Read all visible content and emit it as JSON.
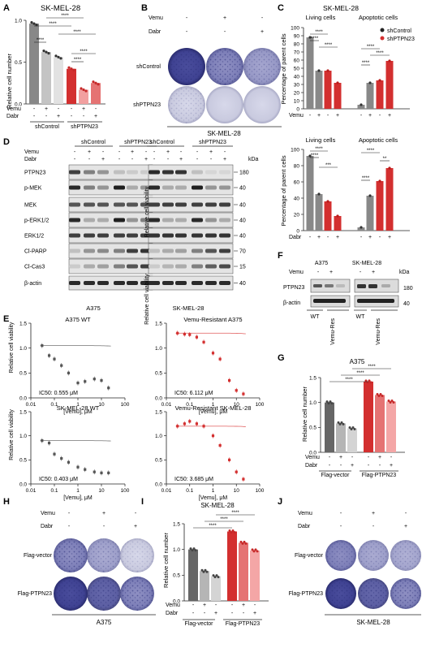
{
  "panel_letters": [
    "A",
    "B",
    "C",
    "D",
    "E",
    "F",
    "G",
    "H",
    "I",
    "J"
  ],
  "common": {
    "relative_cell_number": "Relative cell number",
    "percentage_parent": "Percentage of parent cells",
    "relative_viability": "Relative cell viability",
    "vemu_axis": "[Vemu], μM",
    "vemu": "Vemu",
    "dabr": "Dabr",
    "minus": "-",
    "plus": "+",
    "sig4": "****",
    "sig3": "***",
    "sig2": "**",
    "kda": "kDa"
  },
  "panel_a": {
    "title": "SK-MEL-28",
    "groups": [
      "shControl",
      "shPTPN23"
    ],
    "chart_data": {
      "type": "bar",
      "title": "SK-MEL-28",
      "ylabel": "Relative cell number",
      "ylim": [
        0,
        1.0
      ],
      "yticks": [
        0.0,
        0.5,
        1.0
      ],
      "categories": [
        "shControl -/-",
        "shControl Vemu",
        "shControl Dabr",
        "shPTPN23 -/-",
        "shPTPN23 Vemu",
        "shPTPN23 Dabr"
      ],
      "values": [
        0.96,
        0.62,
        0.56,
        0.42,
        0.17,
        0.25
      ],
      "colors": [
        "#888888",
        "#c4c4c4",
        "#e2e2e2",
        "#d32f2f",
        "#f2a0a0",
        "#e57373"
      ]
    }
  },
  "panel_b": {
    "title": "SK-MEL-28",
    "rows": [
      "shControl",
      "shPTPN23"
    ]
  },
  "panel_c": {
    "title": "SK-MEL-28",
    "headers": [
      "Living cells",
      "Apoptotic cells"
    ],
    "legend": [
      "shControl",
      "shPTPN23"
    ],
    "chart_data": [
      {
        "type": "bar",
        "ylabel": "Percentage of parent cells",
        "ylim": [
          0,
          100
        ],
        "yticks": [
          0,
          10,
          20,
          30,
          40,
          50,
          60,
          70,
          80,
          90,
          100
        ],
        "treatment": "Vemu",
        "series": [
          {
            "name": "shControl",
            "values": [
              88,
              47,
              5,
              32
            ]
          },
          {
            "name": "shPTPN23",
            "values": [
              47,
              32,
              35,
              59
            ]
          }
        ]
      },
      {
        "type": "bar",
        "ylabel": "Percentage of parent cells",
        "ylim": [
          0,
          100
        ],
        "yticks": [
          0,
          20,
          40,
          60,
          80,
          100
        ],
        "treatment": "Dabr",
        "series": [
          {
            "name": "shControl",
            "values": [
              92,
              45,
              4,
              43
            ]
          },
          {
            "name": "shPTPN23",
            "values": [
              36,
              18,
              61,
              77
            ]
          }
        ]
      }
    ]
  },
  "panel_d": {
    "groups": [
      "shControl",
      "shPTPN23"
    ],
    "proteins": [
      "PTPN23",
      "p-MEK",
      "MEK",
      "p-ERK1/2",
      "ERK1/2",
      "Cl-PARP",
      "Cl-Cas3",
      "β-actin"
    ],
    "weights": [
      "180",
      "40",
      "40",
      "40",
      "40",
      "70",
      "15",
      "40"
    ],
    "cell_lines": [
      "A375",
      "SK-MEL-28"
    ]
  },
  "panel_e": {
    "chart_data": [
      {
        "type": "scatter",
        "title": "A375 WT",
        "ic50": "IC50: 0.555 μM",
        "x": [
          0.03,
          0.06,
          0.1,
          0.2,
          0.4,
          1,
          2,
          5,
          10,
          20
        ],
        "y": [
          1.05,
          0.85,
          0.78,
          0.65,
          0.5,
          0.3,
          0.33,
          0.38,
          0.35,
          0.2
        ],
        "color": "#555555"
      },
      {
        "type": "scatter",
        "title": "Vemu-Resistant A375",
        "ic50": "IC50: 6.112 μM",
        "x": [
          0.03,
          0.06,
          0.1,
          0.2,
          0.4,
          1,
          2,
          5,
          10,
          20
        ],
        "y": [
          1.3,
          1.28,
          1.27,
          1.22,
          1.12,
          0.9,
          0.78,
          0.35,
          0.15,
          0.08
        ],
        "color": "#d32f2f"
      },
      {
        "type": "scatter",
        "title": "SK-MEL-28 WT",
        "ic50": "IC50: 0.403 μM",
        "x": [
          0.03,
          0.06,
          0.1,
          0.2,
          0.4,
          1,
          2,
          5,
          10,
          20
        ],
        "y": [
          0.9,
          0.85,
          0.62,
          0.53,
          0.45,
          0.35,
          0.3,
          0.25,
          0.23,
          0.23
        ],
        "color": "#555555"
      },
      {
        "type": "scatter",
        "title": "Vemu-Resistant SK-MEL-28",
        "ic50": "IC50: 3.685 μM",
        "x": [
          0.03,
          0.06,
          0.1,
          0.2,
          0.4,
          1,
          2,
          5,
          10,
          20
        ],
        "y": [
          1.2,
          1.25,
          1.3,
          1.25,
          1.2,
          1.0,
          0.8,
          0.5,
          0.25,
          0.1
        ],
        "color": "#d32f2f"
      }
    ],
    "xticks": [
      "0.01",
      "0.1",
      "1",
      "10",
      "100"
    ],
    "yticks_a": [
      "0.0",
      "0.5",
      "1.0",
      "1.5"
    ],
    "yticks_b": [
      "0.0",
      "0.5",
      "1.0",
      "1.5"
    ]
  },
  "panel_f": {
    "title_left": "A375",
    "title_right": "SK-MEL-28",
    "proteins": [
      "PTPN23",
      "β-actin"
    ],
    "weights": [
      "180",
      "40"
    ],
    "groups": [
      "WT",
      "Vemu-Res",
      "WT",
      "Vemu-Res"
    ]
  },
  "panel_g": {
    "title": "A375",
    "groups": [
      "Flag-vector",
      "Flag-PTPN23"
    ],
    "chart_data": {
      "type": "bar",
      "title": "A375",
      "ylabel": "Relative cell number",
      "ylim": [
        0,
        1.5
      ],
      "yticks": [
        0.0,
        0.5,
        1.0,
        1.5
      ],
      "values": [
        1.0,
        0.58,
        0.48,
        1.42,
        1.15,
        1.02
      ],
      "colors": [
        "#666666",
        "#b5b5b5",
        "#d4d4d4",
        "#d32f2f",
        "#e57373",
        "#f4a6a6"
      ]
    }
  },
  "panel_h": {
    "rows": [
      "Flag-vector",
      "Flag-PTPN23"
    ],
    "caption": "A375"
  },
  "panel_i": {
    "title": "SK-MEL-28",
    "groups": [
      "Flag-vector",
      "Flag-PTPN23"
    ],
    "chart_data": {
      "type": "bar",
      "title": "SK-MEL-28",
      "ylabel": "Relative cell number",
      "ylim": [
        0,
        1.5
      ],
      "yticks": [
        0.0,
        0.5,
        1.0,
        1.5
      ],
      "values": [
        1.0,
        0.58,
        0.48,
        1.35,
        1.13,
        0.98
      ],
      "colors": [
        "#666666",
        "#b5b5b5",
        "#d4d4d4",
        "#d32f2f",
        "#e57373",
        "#f4a6a6"
      ]
    }
  },
  "panel_j": {
    "rows": [
      "Flag-vector",
      "Flag-PTPN23"
    ],
    "caption": "SK-MEL-28"
  }
}
